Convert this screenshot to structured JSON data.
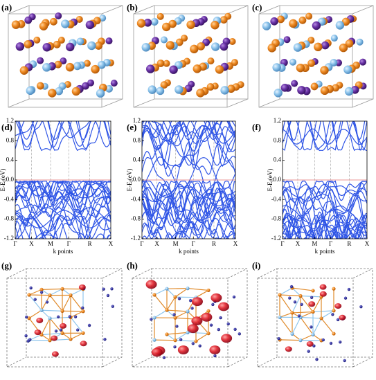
{
  "structure_panels": {
    "labels": [
      "(a)",
      "(b)",
      "(c)"
    ]
  },
  "density_panels": {
    "labels": [
      "(g)",
      "(h)",
      "(i)"
    ]
  },
  "chart_data": [
    {
      "type": "line",
      "panel": "(d)",
      "categories": [
        "Γ",
        "X",
        "M",
        "Γ",
        "R",
        "X"
      ],
      "xlabel": "k points",
      "ylabel": [
        "E-E",
        "f",
        "(eV)"
      ],
      "ylim": [
        -1.2,
        1.2
      ],
      "yticks": [
        -1.2,
        -0.8,
        -0.4,
        {
          "value": 0,
          "label": "0.0"
        },
        0.4,
        0.8,
        1.2
      ],
      "line_color": "#2f55e6",
      "reference_color": "#e07070"
    },
    {
      "type": "line",
      "panel": "(e)",
      "categories": [
        "Γ",
        "X",
        "M",
        "Γ",
        "R",
        "X"
      ],
      "xlabel": "k points",
      "ylabel": [
        "E-E",
        "f",
        "(eV)"
      ],
      "ylim": [
        -1.2,
        1.2
      ],
      "yticks": [
        -1.2,
        -0.8,
        -0.4,
        {
          "value": 0,
          "label": "0.0"
        },
        0.4,
        0.8,
        1.2
      ],
      "line_color": "#2f55e6",
      "reference_color": "#e07070"
    },
    {
      "type": "line",
      "panel": "(f)",
      "categories": [
        "Γ",
        "X",
        "M",
        "Γ",
        "R",
        "X"
      ],
      "xlabel": "k points",
      "ylabel": [
        "E-E",
        "f",
        "(eV)"
      ],
      "ylim": [
        -1.2,
        1.2
      ],
      "yticks": [
        -1.2,
        -0.8,
        -0.4,
        {
          "value": 0,
          "label": "0.0"
        },
        0.4,
        0.8,
        1.2
      ],
      "line_color": "#2f55e6",
      "reference_color": "#e07070"
    }
  ]
}
